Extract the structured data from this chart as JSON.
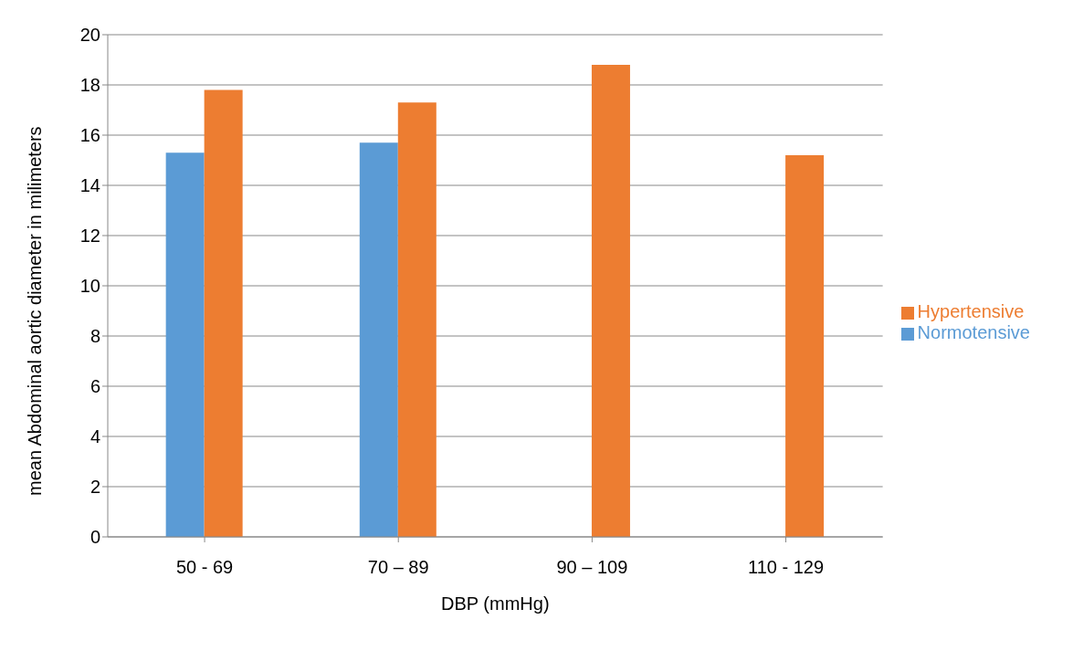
{
  "chart_data": {
    "type": "bar",
    "xlabel": "DBP (mmHg)",
    "ylabel": "mean Abdominal aortic diameter in milimeters",
    "categories": [
      "50 - 69",
      "70 – 89",
      "90 – 109",
      "110 - 129"
    ],
    "series": [
      {
        "name": "Normotensive",
        "color": "#5b9bd5",
        "values": [
          15.3,
          15.7,
          null,
          null
        ]
      },
      {
        "name": "Hypertensive",
        "color": "#ed7d31",
        "values": [
          17.8,
          17.3,
          18.8,
          15.2
        ]
      }
    ],
    "ylim": [
      0,
      20
    ],
    "yticks": [
      0,
      2,
      4,
      6,
      8,
      10,
      12,
      14,
      16,
      18,
      20
    ],
    "grid": "y",
    "legend": "right"
  }
}
